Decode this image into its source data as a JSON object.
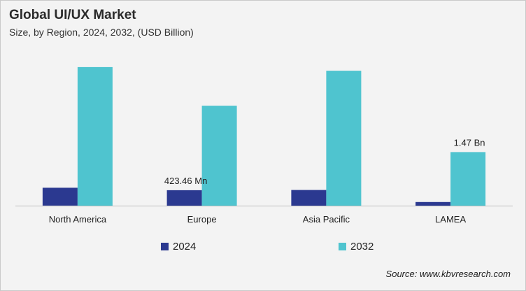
{
  "title": "Global UI/UX Market",
  "subtitle": "Size, by Region, 2024, 2032, (USD Billion)",
  "source": "Source: www.kbvresearch.com",
  "chart_data": {
    "type": "bar",
    "categories": [
      "North America",
      "Europe",
      "Asia Pacific",
      "LAMEA"
    ],
    "series": [
      {
        "name": "2024",
        "color": "#2b3990",
        "values": [
          0.49,
          0.42346,
          0.43,
          0.1
        ]
      },
      {
        "name": "2032",
        "color": "#4fc4cf",
        "values": [
          3.8,
          2.74,
          3.7,
          1.47
        ]
      }
    ],
    "data_labels": [
      {
        "series": 0,
        "category": 1,
        "text": "423.46 Mn"
      },
      {
        "series": 1,
        "category": 3,
        "text": "1.47 Bn"
      }
    ],
    "ylim": [
      0,
      4.2
    ],
    "grid": false,
    "legend": "bottom"
  }
}
